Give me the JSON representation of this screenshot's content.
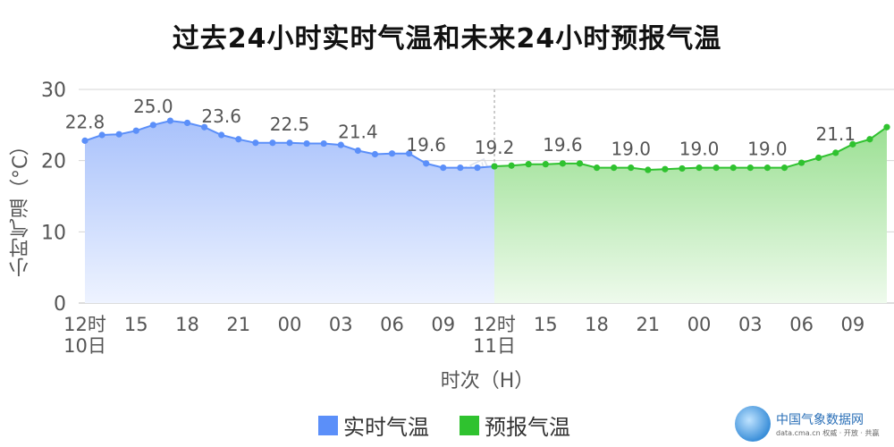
{
  "title": "过去24小时实时气温和未来24小时预报气温",
  "watermark": "中国气象数据网",
  "brand": {
    "name": "中国气象数据网",
    "url": "data.cma.cn 权威 · 开放 · 共赢"
  },
  "chart_data": {
    "type": "area",
    "ylabel": "小时气温（°C）",
    "xlabel": "时次（H）",
    "ylim": [
      0,
      30
    ],
    "yticks": [
      0,
      10,
      20,
      30
    ],
    "grid": true,
    "legend_position": "bottom",
    "xticks": [
      {
        "i": 0,
        "label": "12时",
        "sub": "10日"
      },
      {
        "i": 3,
        "label": "15",
        "sub": ""
      },
      {
        "i": 6,
        "label": "18",
        "sub": ""
      },
      {
        "i": 9,
        "label": "21",
        "sub": ""
      },
      {
        "i": 12,
        "label": "00",
        "sub": ""
      },
      {
        "i": 15,
        "label": "03",
        "sub": ""
      },
      {
        "i": 18,
        "label": "06",
        "sub": ""
      },
      {
        "i": 21,
        "label": "09",
        "sub": ""
      },
      {
        "i": 24,
        "label": "12时",
        "sub": "11日"
      },
      {
        "i": 27,
        "label": "15",
        "sub": ""
      },
      {
        "i": 30,
        "label": "18",
        "sub": ""
      },
      {
        "i": 33,
        "label": "21",
        "sub": ""
      },
      {
        "i": 36,
        "label": "00",
        "sub": ""
      },
      {
        "i": 39,
        "label": "03",
        "sub": ""
      },
      {
        "i": 42,
        "label": "06",
        "sub": ""
      },
      {
        "i": 45,
        "label": "09",
        "sub": ""
      }
    ],
    "divider_index": 24,
    "series": [
      {
        "name": "实时气温",
        "color": "#5b8ff9",
        "fill_top": "#a9c2fb",
        "fill_bottom": "#eef3ff",
        "start_index": 0,
        "values": [
          22.8,
          23.6,
          23.7,
          24.2,
          25.0,
          25.6,
          25.3,
          24.7,
          23.6,
          23.0,
          22.5,
          22.5,
          22.5,
          22.4,
          22.4,
          22.2,
          21.4,
          20.9,
          21.0,
          21.0,
          19.6,
          19.0,
          19.0,
          19.0,
          19.2
        ],
        "labels": [
          {
            "i": 0,
            "text": "22.8"
          },
          {
            "i": 4,
            "text": "25.0"
          },
          {
            "i": 8,
            "text": "23.6"
          },
          {
            "i": 12,
            "text": "22.5"
          },
          {
            "i": 16,
            "text": "21.4"
          },
          {
            "i": 20,
            "text": "19.6"
          }
        ]
      },
      {
        "name": "预报气温",
        "color": "#2fc22f",
        "fill_top": "#9be093",
        "fill_bottom": "#eefaec",
        "start_index": 24,
        "values": [
          19.2,
          19.3,
          19.5,
          19.5,
          19.6,
          19.6,
          19.0,
          19.0,
          19.0,
          18.7,
          18.8,
          18.9,
          19.0,
          19.0,
          19.0,
          19.0,
          19.0,
          19.0,
          19.7,
          20.4,
          21.1,
          22.3,
          23.0,
          24.7
        ],
        "labels": [
          {
            "i": 24,
            "text": "19.2"
          },
          {
            "i": 28,
            "text": "19.6"
          },
          {
            "i": 32,
            "text": "19.0"
          },
          {
            "i": 36,
            "text": "19.0"
          },
          {
            "i": 40,
            "text": "19.0"
          },
          {
            "i": 44,
            "text": "21.1"
          }
        ]
      }
    ]
  }
}
